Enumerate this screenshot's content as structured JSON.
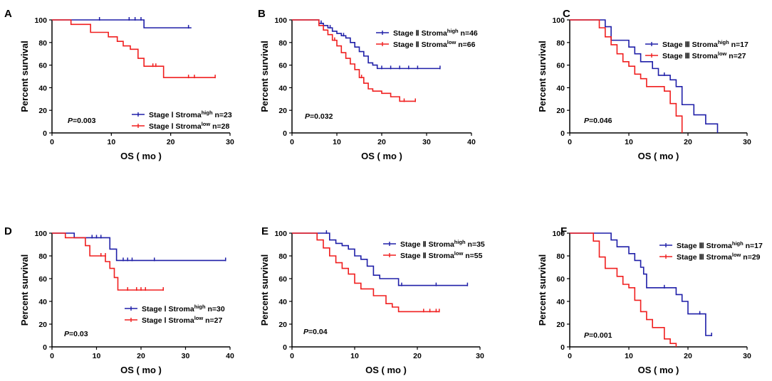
{
  "figure": {
    "type": "survival-curves",
    "panel_count": 6
  },
  "colors": {
    "high": "#1f1fa8",
    "low": "#f01e1e",
    "axis": "#000000"
  },
  "chart_data": [
    {
      "panel": "A",
      "type": "line",
      "xlabel": "OS (mo)",
      "ylabel": "Percent survival",
      "xlim": [
        0,
        30
      ],
      "xticks": [
        0,
        10,
        20,
        30
      ],
      "ylim": [
        0,
        100
      ],
      "yticks": [
        0,
        20,
        40,
        60,
        80,
        100
      ],
      "p_value": "0.003",
      "series": [
        {
          "name": "Stage I Stroma high",
          "stage": "Stage Ⅰ",
          "group": "high",
          "n": 23,
          "steps": [
            [
              0,
              100
            ],
            [
              15.5,
              93
            ],
            [
              23.5,
              93
            ]
          ],
          "censored": [
            [
              8,
              100
            ],
            [
              13,
              100
            ],
            [
              14,
              100
            ],
            [
              15,
              100
            ],
            [
              23,
              93
            ]
          ]
        },
        {
          "name": "Stage I Stroma low",
          "stage": "Stage Ⅰ",
          "group": "low",
          "n": 28,
          "steps": [
            [
              0,
              100
            ],
            [
              3.2,
              96
            ],
            [
              6.5,
              89
            ],
            [
              9.5,
              85
            ],
            [
              11,
              81
            ],
            [
              12,
              77
            ],
            [
              13.2,
              74
            ],
            [
              14.5,
              66
            ],
            [
              15.5,
              59
            ],
            [
              18.8,
              49
            ],
            [
              27.5,
              49
            ]
          ],
          "censored": [
            [
              17,
              59
            ],
            [
              17.5,
              59
            ],
            [
              23,
              49
            ],
            [
              24,
              49
            ],
            [
              27.5,
              49
            ]
          ]
        }
      ]
    },
    {
      "panel": "B",
      "type": "line",
      "xlabel": "OS (mo)",
      "ylabel": "Percent survival",
      "xlim": [
        0,
        40
      ],
      "xticks": [
        0,
        10,
        20,
        30,
        40
      ],
      "ylim": [
        0,
        100
      ],
      "yticks": [
        0,
        20,
        40,
        60,
        80,
        100
      ],
      "p_value": "0.032",
      "series": [
        {
          "name": "Stage II Stroma high",
          "stage": "Stage Ⅱ",
          "group": "high",
          "n": 46,
          "steps": [
            [
              0,
              100
            ],
            [
              5,
              100
            ],
            [
              6,
              97
            ],
            [
              7,
              95
            ],
            [
              8,
              93
            ],
            [
              9,
              90
            ],
            [
              10,
              88
            ],
            [
              11,
              86
            ],
            [
              12,
              84
            ],
            [
              13,
              80
            ],
            [
              14,
              76
            ],
            [
              15,
              72
            ],
            [
              16,
              68
            ],
            [
              17,
              62
            ],
            [
              18,
              60
            ],
            [
              19,
              57
            ],
            [
              33,
              57
            ]
          ],
          "censored": [
            [
              6.5,
              97
            ],
            [
              8.5,
              93
            ],
            [
              11.5,
              86
            ],
            [
              20,
              57
            ],
            [
              22,
              57
            ],
            [
              24,
              57
            ],
            [
              26,
              57
            ],
            [
              28,
              57
            ],
            [
              33,
              57
            ]
          ]
        },
        {
          "name": "Stage II Stroma low",
          "stage": "Stage Ⅱ",
          "group": "low",
          "n": 66,
          "steps": [
            [
              0,
              100
            ],
            [
              5,
              100
            ],
            [
              6,
              95
            ],
            [
              7,
              91
            ],
            [
              8,
              87
            ],
            [
              9,
              82
            ],
            [
              10,
              77
            ],
            [
              11,
              71
            ],
            [
              12,
              66
            ],
            [
              13,
              61
            ],
            [
              14,
              56
            ],
            [
              15,
              49
            ],
            [
              16,
              44
            ],
            [
              17,
              39
            ],
            [
              18,
              37
            ],
            [
              20,
              35
            ],
            [
              22,
              32
            ],
            [
              24,
              28
            ],
            [
              27.5,
              28
            ]
          ],
          "censored": [
            [
              9.5,
              82
            ],
            [
              15.5,
              49
            ],
            [
              25,
              28
            ],
            [
              27.5,
              28
            ]
          ]
        }
      ]
    },
    {
      "panel": "C",
      "type": "line",
      "xlabel": "OS (mo)",
      "ylabel": "Percent survival",
      "xlim": [
        0,
        30
      ],
      "xticks": [
        0,
        10,
        20,
        30
      ],
      "ylim": [
        0,
        100
      ],
      "yticks": [
        0,
        20,
        40,
        60,
        80,
        100
      ],
      "p_value": "0.046",
      "series": [
        {
          "name": "Stage III Stroma high",
          "stage": "Stage Ⅲ",
          "group": "high",
          "n": 17,
          "steps": [
            [
              0,
              100
            ],
            [
              5,
              100
            ],
            [
              6,
              94
            ],
            [
              7,
              82
            ],
            [
              10,
              76
            ],
            [
              11,
              70
            ],
            [
              12,
              63
            ],
            [
              14,
              57
            ],
            [
              15,
              51
            ],
            [
              17,
              47
            ],
            [
              18,
              41
            ],
            [
              19,
              25
            ],
            [
              21,
              16
            ],
            [
              23,
              8
            ],
            [
              25,
              0
            ]
          ],
          "censored": [
            [
              16,
              51
            ]
          ]
        },
        {
          "name": "Stage III Stroma low",
          "stage": "Stage Ⅲ",
          "group": "low",
          "n": 27,
          "steps": [
            [
              0,
              100
            ],
            [
              4,
              100
            ],
            [
              5,
              93
            ],
            [
              6,
              85
            ],
            [
              7,
              78
            ],
            [
              8,
              70
            ],
            [
              9,
              63
            ],
            [
              10,
              59
            ],
            [
              11,
              52
            ],
            [
              12,
              48
            ],
            [
              13,
              41
            ],
            [
              16,
              37
            ],
            [
              17,
              26
            ],
            [
              18,
              15
            ],
            [
              19,
              0
            ]
          ],
          "censored": []
        }
      ]
    },
    {
      "panel": "D",
      "type": "line",
      "xlabel": "OS (mo)",
      "ylabel": "Percent survival",
      "xlim": [
        0,
        40
      ],
      "xticks": [
        0,
        10,
        20,
        30,
        40
      ],
      "ylim": [
        0,
        100
      ],
      "yticks": [
        0,
        20,
        40,
        60,
        80,
        100
      ],
      "p_value": "0.03",
      "series": [
        {
          "name": "Stage I Stroma high",
          "stage": "Stage Ⅰ",
          "group": "high",
          "n": 30,
          "steps": [
            [
              0,
              100
            ],
            [
              5,
              96
            ],
            [
              13,
              86
            ],
            [
              14.5,
              76
            ],
            [
              39,
              76
            ]
          ],
          "censored": [
            [
              9,
              96
            ],
            [
              10,
              96
            ],
            [
              11,
              96
            ],
            [
              16,
              76
            ],
            [
              17,
              76
            ],
            [
              18,
              76
            ],
            [
              23,
              76
            ],
            [
              39,
              76
            ]
          ]
        },
        {
          "name": "Stage I Stroma low",
          "stage": "Stage Ⅰ",
          "group": "low",
          "n": 27,
          "steps": [
            [
              0,
              100
            ],
            [
              3,
              96
            ],
            [
              7.5,
              89
            ],
            [
              8.5,
              80
            ],
            [
              12,
              75
            ],
            [
              13,
              69
            ],
            [
              14,
              61
            ],
            [
              14.8,
              50
            ],
            [
              25,
              50
            ]
          ],
          "censored": [
            [
              11,
              80
            ],
            [
              12,
              80
            ],
            [
              17,
              50
            ],
            [
              19,
              50
            ],
            [
              20,
              50
            ],
            [
              21,
              50
            ],
            [
              25,
              50
            ]
          ]
        }
      ]
    },
    {
      "panel": "E",
      "type": "line",
      "xlabel": "OS (mo)",
      "ylabel": "Percent survival",
      "xlim": [
        0,
        30
      ],
      "xticks": [
        0,
        10,
        20,
        30
      ],
      "ylim": [
        0,
        100
      ],
      "yticks": [
        0,
        20,
        40,
        60,
        80,
        100
      ],
      "p_value": "0.04",
      "series": [
        {
          "name": "Stage II Stroma high",
          "stage": "Stage Ⅱ",
          "group": "high",
          "n": 35,
          "steps": [
            [
              0,
              100
            ],
            [
              5,
              100
            ],
            [
              6,
              94
            ],
            [
              7,
              91
            ],
            [
              8,
              89
            ],
            [
              9,
              86
            ],
            [
              10,
              80
            ],
            [
              11,
              77
            ],
            [
              12,
              71
            ],
            [
              13,
              63
            ],
            [
              14,
              60
            ],
            [
              17,
              54
            ],
            [
              28,
              54
            ]
          ],
          "censored": [
            [
              5.5,
              100
            ],
            [
              17.5,
              54
            ],
            [
              23,
              54
            ],
            [
              28,
              54
            ]
          ]
        },
        {
          "name": "Stage II Stroma low",
          "stage": "Stage Ⅱ",
          "group": "low",
          "n": 55,
          "steps": [
            [
              0,
              100
            ],
            [
              3,
              100
            ],
            [
              4,
              94
            ],
            [
              5,
              87
            ],
            [
              6,
              80
            ],
            [
              7,
              74
            ],
            [
              8,
              69
            ],
            [
              9,
              64
            ],
            [
              10,
              56
            ],
            [
              11,
              51
            ],
            [
              13,
              45
            ],
            [
              15,
              38
            ],
            [
              16,
              35
            ],
            [
              17,
              31
            ],
            [
              23.5,
              31
            ]
          ],
          "censored": [
            [
              21,
              31
            ],
            [
              22,
              31
            ],
            [
              23,
              31
            ],
            [
              23.5,
              31
            ]
          ]
        }
      ]
    },
    {
      "panel": "F",
      "type": "line",
      "xlabel": "OS (mo)",
      "ylabel": "Percent survival",
      "xlim": [
        0,
        30
      ],
      "xticks": [
        0,
        10,
        20,
        30
      ],
      "ylim": [
        0,
        100
      ],
      "yticks": [
        0,
        20,
        40,
        60,
        80,
        100
      ],
      "p_value": "0.001",
      "series": [
        {
          "name": "Stage III Stroma high",
          "stage": "Stage Ⅲ",
          "group": "high",
          "n": 17,
          "steps": [
            [
              0,
              100
            ],
            [
              6,
              100
            ],
            [
              7,
              94
            ],
            [
              8,
              88
            ],
            [
              10,
              82
            ],
            [
              11,
              76
            ],
            [
              12,
              70
            ],
            [
              12.5,
              64
            ],
            [
              13,
              52
            ],
            [
              18,
              46
            ],
            [
              19,
              40
            ],
            [
              20,
              29
            ],
            [
              23,
              10
            ],
            [
              24,
              10
            ]
          ],
          "censored": [
            [
              16,
              52
            ],
            [
              22,
              29
            ],
            [
              24,
              10
            ]
          ]
        },
        {
          "name": "Stage III Stroma low",
          "stage": "Stage Ⅲ",
          "group": "low",
          "n": 29,
          "steps": [
            [
              0,
              100
            ],
            [
              3,
              100
            ],
            [
              4,
              93
            ],
            [
              5,
              79
            ],
            [
              6,
              69
            ],
            [
              8,
              62
            ],
            [
              9,
              55
            ],
            [
              10,
              52
            ],
            [
              11,
              41
            ],
            [
              12,
              31
            ],
            [
              13,
              24
            ],
            [
              14,
              17
            ],
            [
              16,
              7
            ],
            [
              17,
              3
            ],
            [
              18,
              0
            ]
          ],
          "censored": []
        }
      ]
    }
  ]
}
